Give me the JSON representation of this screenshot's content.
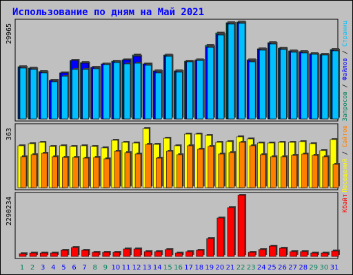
{
  "title": "Использование по дням на Май 2021",
  "colors": {
    "background": "#c0c0c0",
    "title": "#0000ff",
    "hits": "#00805c",
    "files": "#0000ff",
    "pages": "#00c0ff",
    "visits": "#ffff00",
    "sites": "#ff8000",
    "kbytes": "#ff0000",
    "weekend_label": "#00805c",
    "weekday_label": "#0000ff"
  },
  "chart_data": [
    {
      "type": "bar",
      "panel": "top",
      "y_max_label": "29965",
      "side_legend": [
        "Запросов",
        "Файлов",
        "Страниц"
      ],
      "categories": [
        "1",
        "2",
        "3",
        "4",
        "5",
        "6",
        "7",
        "8",
        "9",
        "10",
        "11",
        "12",
        "13",
        "14",
        "15",
        "16",
        "17",
        "18",
        "19",
        "20",
        "21",
        "22",
        "23",
        "24",
        "25",
        "26",
        "27",
        "28",
        "29",
        "30",
        "31"
      ],
      "weekend_days": [
        "1",
        "2",
        "8",
        "9",
        "15",
        "16",
        "22",
        "23",
        "29",
        "30"
      ],
      "ylim": [
        0,
        29965
      ],
      "series": [
        {
          "name": "Запросов",
          "values": [
            16200,
            15700,
            14700,
            11900,
            14200,
            18100,
            17500,
            16000,
            17000,
            17800,
            18300,
            19700,
            17100,
            14800,
            19700,
            14800,
            17900,
            18300,
            22700,
            26500,
            29800,
            29965,
            18200,
            21600,
            23600,
            21800,
            21100,
            20800,
            20200,
            19900,
            21400
          ]
        },
        {
          "name": "Файлов",
          "values": [
            16000,
            15600,
            14500,
            11800,
            14200,
            18000,
            17300,
            15900,
            16900,
            17600,
            18200,
            19400,
            16900,
            14700,
            19500,
            14700,
            17700,
            18100,
            22400,
            26200,
            29500,
            29700,
            18000,
            21400,
            23400,
            21600,
            20900,
            20600,
            20000,
            19700,
            21200
          ]
        },
        {
          "name": "Страниц",
          "values": [
            15700,
            15300,
            14200,
            11500,
            13100,
            15300,
            15200,
            15500,
            16700,
            17400,
            17000,
            17300,
            16500,
            14200,
            19300,
            14500,
            17600,
            18000,
            22200,
            26000,
            29300,
            29500,
            17700,
            21200,
            23200,
            21400,
            20700,
            20500,
            19900,
            19700,
            21100
          ]
        }
      ]
    },
    {
      "type": "bar",
      "panel": "middle",
      "y_max_label": "363",
      "side_legend": [
        "Посещений",
        "Сайтов"
      ],
      "categories": [
        "1",
        "2",
        "3",
        "4",
        "5",
        "6",
        "7",
        "8",
        "9",
        "10",
        "11",
        "12",
        "13",
        "14",
        "15",
        "16",
        "17",
        "18",
        "19",
        "20",
        "21",
        "22",
        "23",
        "24",
        "25",
        "26",
        "27",
        "28",
        "29",
        "30",
        "31"
      ],
      "ylim": [
        0,
        363
      ],
      "series": [
        {
          "name": "Посещений",
          "values": [
            250,
            260,
            270,
            245,
            250,
            245,
            250,
            245,
            235,
            280,
            270,
            265,
            350,
            255,
            295,
            250,
            320,
            320,
            310,
            270,
            275,
            300,
            290,
            265,
            265,
            270,
            270,
            275,
            260,
            220,
            285
          ]
        },
        {
          "name": "Сайтов",
          "values": [
            185,
            195,
            205,
            185,
            180,
            180,
            175,
            180,
            170,
            215,
            210,
            200,
            255,
            175,
            215,
            195,
            250,
            230,
            245,
            200,
            210,
            270,
            250,
            195,
            185,
            185,
            190,
            200,
            190,
            185,
            140
          ]
        }
      ]
    },
    {
      "type": "bar",
      "panel": "bottom",
      "y_max_label": "2290234",
      "side_legend": [
        "Кбайт"
      ],
      "categories": [
        "1",
        "2",
        "3",
        "4",
        "5",
        "6",
        "7",
        "8",
        "9",
        "10",
        "11",
        "12",
        "13",
        "14",
        "15",
        "16",
        "17",
        "18",
        "19",
        "20",
        "21",
        "22",
        "23",
        "24",
        "25",
        "26",
        "27",
        "28",
        "29",
        "30",
        "31"
      ],
      "ylim": [
        0,
        2290234
      ],
      "series": [
        {
          "name": "Кбайт",
          "values": [
            100000,
            120000,
            120000,
            120000,
            220000,
            340000,
            240000,
            150000,
            150000,
            150000,
            290000,
            290000,
            170000,
            170000,
            270000,
            120000,
            170000,
            240000,
            660000,
            1450000,
            1820000,
            2290234,
            150000,
            250000,
            390000,
            320000,
            190000,
            180000,
            130000,
            130000,
            210000
          ]
        }
      ]
    }
  ]
}
